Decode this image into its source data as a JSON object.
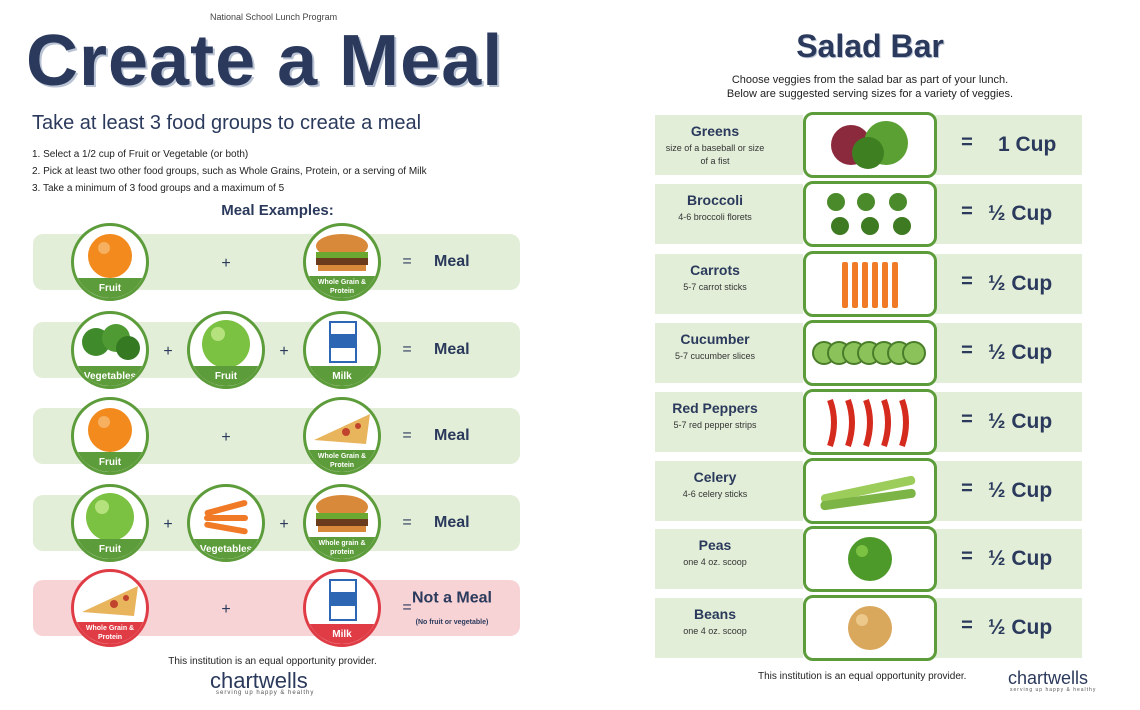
{
  "left": {
    "program": "National School Lunch Program",
    "title": "Create a Meal",
    "subtitle": "Take at least 3 food groups to create a meal",
    "steps": [
      "1. Select a 1/2 cup of Fruit or Vegetable (or both)",
      "2. Pick at least two other food groups, such as Whole Grains,  Protein, or a serving of Milk",
      "3. Take a minimum of 3 food groups and a maximum of 5"
    ],
    "examples_heading": "Meal Examples:",
    "plus": "+",
    "equals": "=",
    "examples": [
      {
        "items": [
          "Fruit",
          "Whole Grain & Protein"
        ],
        "result": "Meal"
      },
      {
        "items": [
          "Vegetables",
          "Fruit",
          "Milk"
        ],
        "result": "Meal"
      },
      {
        "items": [
          "Fruit",
          "Whole Grain & Protein"
        ],
        "result": "Meal"
      },
      {
        "items": [
          "Fruit",
          "Vegetables",
          "Whole grain & protein"
        ],
        "result": "Meal"
      },
      {
        "items": [
          "Whole Grain & Protein",
          "Milk"
        ],
        "result": "Not a Meal",
        "note": "(No fruit or vegetable)"
      }
    ],
    "footer": "This institution is an equal opportunity provider.",
    "logo": "chartwells",
    "tagline": "serving up happy & healthy"
  },
  "right": {
    "title": "Salad Bar",
    "intro": [
      "Choose veggies from the salad bar as part of your lunch.",
      "Below are suggested serving sizes for a variety of veggies."
    ],
    "items": [
      {
        "name": "Greens",
        "serving": "size of a baseball or size of a fist",
        "amount": "1 Cup"
      },
      {
        "name": "Broccoli",
        "serving": "4-6 broccoli florets",
        "amount": "½ Cup"
      },
      {
        "name": "Carrots",
        "serving": "5-7 carrot sticks",
        "amount": "½ Cup"
      },
      {
        "name": "Cucumber",
        "serving": "5-7 cucumber slices",
        "amount": "½ Cup"
      },
      {
        "name": "Red Peppers",
        "serving": "5-7 red pepper strips",
        "amount": "½ Cup"
      },
      {
        "name": "Celery",
        "serving": "4-6 celery sticks",
        "amount": "½ Cup"
      },
      {
        "name": "Peas",
        "serving": "one 4 oz. scoop",
        "amount": "½ Cup"
      },
      {
        "name": "Beans",
        "serving": "one 4 oz. scoop",
        "amount": "½ Cup"
      }
    ],
    "equals": "=",
    "footer": "This institution is an equal opportunity provider.",
    "logo": "chartwells",
    "tagline": "serving up happy & healthy"
  }
}
